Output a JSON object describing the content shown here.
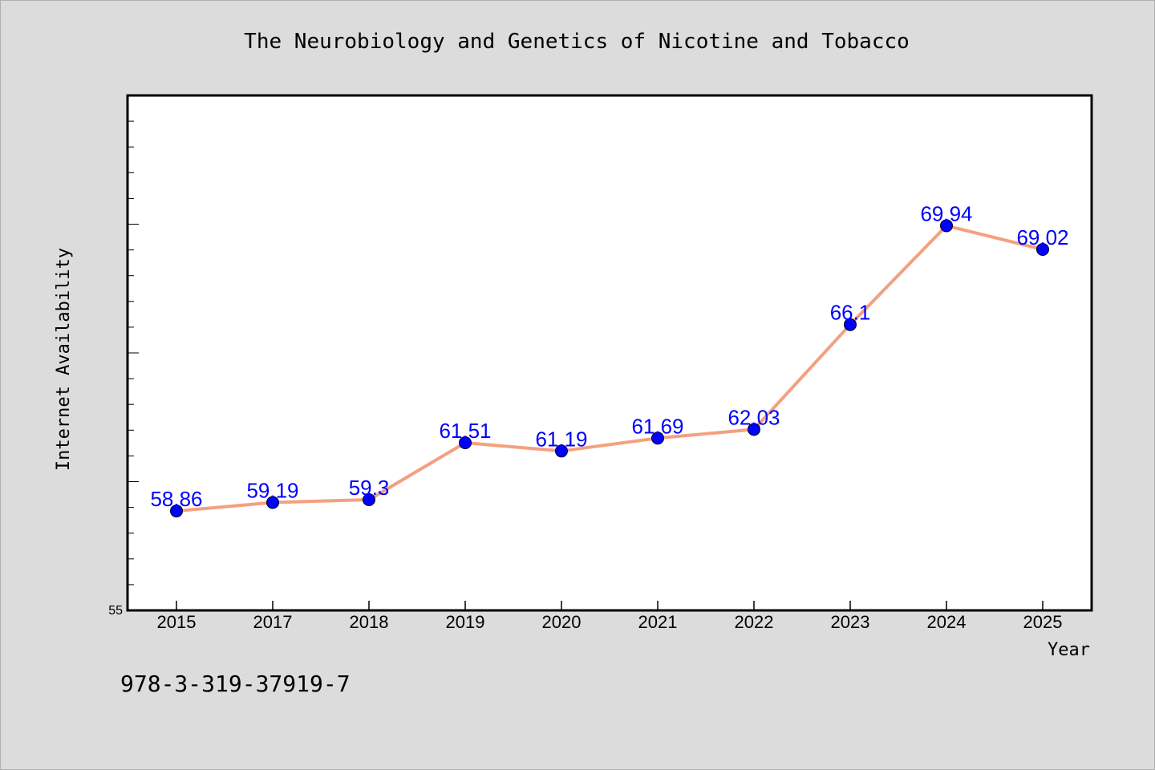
{
  "chart_data": {
    "type": "line",
    "title": "The Neurobiology and Genetics of Nicotine and Tobacco",
    "xlabel": "Year",
    "ylabel": "Internet Availability",
    "categories": [
      "2015",
      "2017",
      "2018",
      "2019",
      "2020",
      "2021",
      "2022",
      "2023",
      "2024",
      "2025"
    ],
    "series": [
      {
        "values": [
          58.86,
          59.19,
          59.3,
          61.51,
          61.19,
          61.69,
          62.03,
          66.1,
          69.94,
          69.02
        ]
      }
    ],
    "data_labels": [
      "58.86",
      "59.19",
      "59.3",
      "61.51",
      "61.19",
      "61.69",
      "62.03",
      "66.1",
      "69.94",
      "69.02"
    ],
    "ylim": [
      55,
      75
    ],
    "y_tick_label": "55",
    "grid": false,
    "line_color": "#f4a080",
    "marker_color": "#0000ff",
    "label_color": "#0000ff",
    "plot_background": "#ffffff",
    "page_background": "#dcdcdc"
  },
  "footer": {
    "isbn": "978-3-319-37919-7"
  }
}
